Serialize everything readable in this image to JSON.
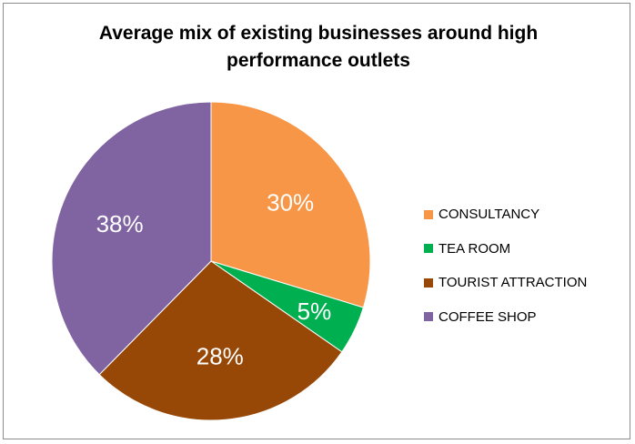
{
  "chart_data": {
    "type": "pie",
    "title": "Average mix of existing businesses around high performance outlets",
    "categories": [
      "CONSULTANCY",
      "TEA ROOM",
      "TOURIST ATTRACTION",
      "COFFEE SHOP"
    ],
    "values": [
      30,
      5,
      28,
      38
    ],
    "labels": [
      "30%",
      "5%",
      "28%",
      "38%"
    ],
    "colors": [
      "#F79646",
      "#00B050",
      "#974706",
      "#8064A2"
    ],
    "legend": "right",
    "start": "top, clockwise"
  }
}
